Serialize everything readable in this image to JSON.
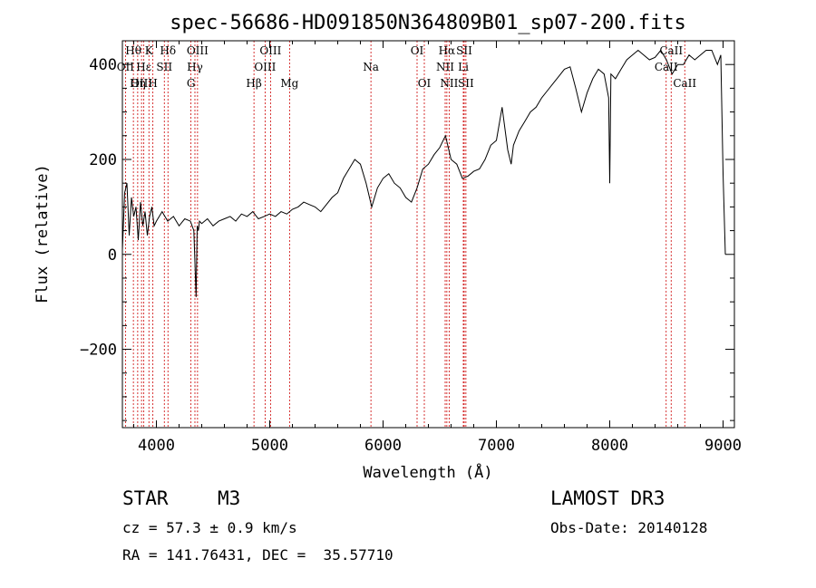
{
  "chart_data": {
    "type": "line",
    "title": "spec-56686-HD091850N364809B01_sp07-200.fits",
    "xlabel": "Wavelength (Å)",
    "ylabel": "Flux (relative)",
    "xlim": [
      3700,
      9100
    ],
    "ylim": [
      -365,
      450
    ],
    "xticks": [
      4000,
      5000,
      6000,
      7000,
      8000,
      9000
    ],
    "yticks": [
      -200,
      0,
      200,
      400
    ],
    "grid": false,
    "legend": "none",
    "series": [
      {
        "x": [
          3700,
          3720,
          3740,
          3760,
          3780,
          3800,
          3820,
          3840,
          3860,
          3880,
          3900,
          3920,
          3940,
          3960,
          3980,
          4000,
          4050,
          4100,
          4150,
          4200,
          4250,
          4300,
          4330,
          4350,
          4360,
          4370,
          4380,
          4400,
          4450,
          4500,
          4550,
          4600,
          4650,
          4700,
          4750,
          4800,
          4850,
          4900,
          4950,
          5000,
          5050,
          5100,
          5150,
          5200,
          5250,
          5300,
          5350,
          5400,
          5450,
          5500,
          5550,
          5600,
          5650,
          5700,
          5750,
          5800,
          5850,
          5900,
          5950,
          6000,
          6050,
          6100,
          6150,
          6200,
          6250,
          6300,
          6350,
          6400,
          6450,
          6500,
          6550,
          6570,
          6600,
          6650,
          6700,
          6750,
          6800,
          6850,
          6900,
          6950,
          7000,
          7050,
          7100,
          7130,
          7150,
          7200,
          7250,
          7300,
          7350,
          7400,
          7450,
          7500,
          7550,
          7600,
          7650,
          7700,
          7750,
          7800,
          7850,
          7900,
          7950,
          7990,
          8000,
          8010,
          8050,
          8100,
          8150,
          8200,
          8250,
          8300,
          8350,
          8400,
          8450,
          8500,
          8550,
          8600,
          8650,
          8700,
          8750,
          8800,
          8850,
          8900,
          8950,
          8980,
          9000,
          9020
        ],
        "values": [
          10,
          130,
          150,
          40,
          120,
          80,
          100,
          30,
          110,
          60,
          90,
          40,
          80,
          100,
          60,
          70,
          90,
          70,
          80,
          60,
          75,
          70,
          50,
          -90,
          60,
          50,
          70,
          65,
          75,
          60,
          70,
          75,
          80,
          70,
          85,
          80,
          90,
          75,
          80,
          85,
          80,
          90,
          85,
          95,
          100,
          110,
          105,
          100,
          90,
          105,
          120,
          130,
          160,
          180,
          200,
          190,
          150,
          100,
          140,
          160,
          170,
          150,
          140,
          120,
          110,
          140,
          180,
          190,
          210,
          225,
          250,
          230,
          200,
          190,
          160,
          165,
          175,
          180,
          200,
          230,
          240,
          310,
          220,
          190,
          230,
          260,
          280,
          300,
          310,
          330,
          345,
          360,
          375,
          390,
          395,
          350,
          300,
          340,
          370,
          390,
          380,
          330,
          150,
          380,
          370,
          390,
          410,
          420,
          430,
          420,
          410,
          415,
          430,
          410,
          380,
          400,
          400,
          420,
          410,
          420,
          430,
          430,
          400,
          420,
          170,
          0
        ]
      }
    ],
    "line_ids": [
      {
        "label": "Hθ",
        "x": 3797,
        "row": 0
      },
      {
        "label": "OII",
        "x": 3727,
        "row": 1
      },
      {
        "label": "OIII",
        "x": 3869,
        "row": 2
      },
      {
        "label": "Hε",
        "x": 3889,
        "row": 1
      },
      {
        "label": "Hη",
        "x": 3835,
        "row": 2
      },
      {
        "label": "K",
        "x": 3934,
        "row": 0
      },
      {
        "label": "H",
        "x": 3969,
        "row": 2
      },
      {
        "label": "SII",
        "x": 4070,
        "row": 1
      },
      {
        "label": "Hδ",
        "x": 4102,
        "row": 0
      },
      {
        "label": "OIII",
        "x": 4363,
        "row": 0
      },
      {
        "label": "Hγ",
        "x": 4340,
        "row": 1
      },
      {
        "label": "G",
        "x": 4305,
        "row": 2
      },
      {
        "label": "Hβ",
        "x": 4861,
        "row": 2
      },
      {
        "label": "OIII",
        "x": 5007,
        "row": 0
      },
      {
        "label": "OIII",
        "x": 4959,
        "row": 1
      },
      {
        "label": "Mg",
        "x": 5175,
        "row": 2
      },
      {
        "label": "Na",
        "x": 5893,
        "row": 1
      },
      {
        "label": "OI",
        "x": 6300,
        "row": 0
      },
      {
        "label": "OI",
        "x": 6364,
        "row": 2
      },
      {
        "label": "Hα",
        "x": 6563,
        "row": 0
      },
      {
        "label": "SII",
        "x": 6716,
        "row": 0
      },
      {
        "label": "NII",
        "x": 6548,
        "row": 1
      },
      {
        "label": "Li",
        "x": 6708,
        "row": 1
      },
      {
        "label": "NII",
        "x": 6583,
        "row": 2
      },
      {
        "label": "SII",
        "x": 6731,
        "row": 2
      },
      {
        "label": "CaII",
        "x": 8542,
        "row": 0
      },
      {
        "label": "CaII",
        "x": 8498,
        "row": 1
      },
      {
        "label": "CaII",
        "x": 8662,
        "row": 2
      }
    ]
  },
  "footer": {
    "class_label": "STAR",
    "subclass": "M3",
    "survey": "LAMOST DR3",
    "cz": "cz = 57.3 ± 0.9 km/s",
    "obs_date": "Obs-Date: 20140128",
    "coords": "RA = 141.76431, DEC =  35.57710"
  },
  "colors": {
    "line_id_marker": "#cc0000",
    "spectrum": "#000000",
    "axes": "#000000"
  }
}
